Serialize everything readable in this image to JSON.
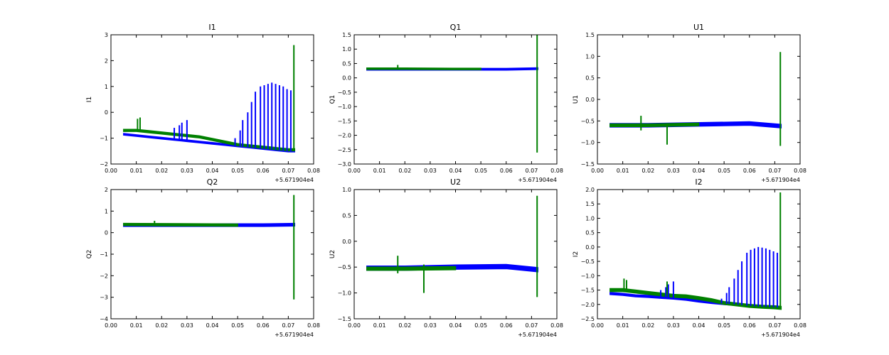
{
  "figure": {
    "x_offset_label": "+5.671904e4",
    "colors": {
      "blue": "#0000ff",
      "green": "#008000"
    }
  },
  "chart_data": [
    {
      "type": "line",
      "title": "I1",
      "ylabel": "I1",
      "xlabel": "",
      "xlim": [
        0.0,
        0.08
      ],
      "ylim": [
        -2,
        3
      ],
      "xticks": [
        "0.00",
        "0.01",
        "0.02",
        "0.03",
        "0.04",
        "0.05",
        "0.06",
        "0.07",
        "0.08"
      ],
      "yticks": [
        "-2",
        "-1",
        "0",
        "1",
        "2",
        "3"
      ],
      "grid": false,
      "series": [
        {
          "color": "#0000ff",
          "x": [
            0.005,
            0.01,
            0.015,
            0.02,
            0.025,
            0.03,
            0.035,
            0.04,
            0.045,
            0.05,
            0.055,
            0.06,
            0.065,
            0.07,
            0.0725
          ],
          "y": [
            -0.85,
            -0.9,
            -0.95,
            -1.0,
            -1.05,
            -1.1,
            -1.15,
            -1.2,
            -1.25,
            -1.3,
            -1.35,
            -1.4,
            -1.45,
            -1.5,
            -1.5
          ],
          "band": 0.06
        },
        {
          "color": "#008000",
          "x": [
            0.005,
            0.01,
            0.015,
            0.02,
            0.025,
            0.03,
            0.035,
            0.04,
            0.045,
            0.05,
            0.055,
            0.06,
            0.065,
            0.07,
            0.0725
          ],
          "y": [
            -0.7,
            -0.7,
            -0.75,
            -0.8,
            -0.85,
            -0.9,
            -0.95,
            -1.05,
            -1.15,
            -1.25,
            -1.3,
            -1.35,
            -1.4,
            -1.45,
            -1.45
          ],
          "band": 0.08
        }
      ],
      "spikes": [
        {
          "color": "#0000ff",
          "x": [
            0.025,
            0.027,
            0.028,
            0.03,
            0.049,
            0.051,
            0.052,
            0.054,
            0.0555,
            0.057,
            0.059,
            0.0605,
            0.062,
            0.0635,
            0.065,
            0.0665,
            0.068,
            0.0695,
            0.071
          ],
          "top": [
            -0.6,
            -0.5,
            -0.4,
            -0.3,
            -1.0,
            -0.7,
            -0.3,
            0.0,
            0.4,
            0.8,
            1.0,
            1.05,
            1.1,
            1.15,
            1.1,
            1.05,
            1.0,
            0.9,
            0.85
          ]
        },
        {
          "color": "#008000",
          "x": [
            0.0105,
            0.0115,
            0.0722
          ],
          "top": [
            -0.25,
            -0.2,
            2.6
          ],
          "bottom": [
            null,
            null,
            -1.5
          ]
        }
      ]
    },
    {
      "type": "line",
      "title": "Q1",
      "ylabel": "Q1",
      "xlabel": "",
      "xlim": [
        0.0,
        0.08
      ],
      "ylim": [
        -3.0,
        1.5
      ],
      "xticks": [
        "0.00",
        "0.01",
        "0.02",
        "0.03",
        "0.04",
        "0.05",
        "0.06",
        "0.07",
        "0.08"
      ],
      "yticks": [
        "-3.0",
        "-2.5",
        "-2.0",
        "-1.5",
        "-1.0",
        "-0.5",
        "0.0",
        "0.5",
        "1.0",
        "1.5"
      ],
      "grid": false,
      "series": [
        {
          "color": "#0000ff",
          "x": [
            0.005,
            0.02,
            0.04,
            0.06,
            0.0725
          ],
          "y": [
            0.3,
            0.3,
            0.3,
            0.3,
            0.32
          ],
          "band": 0.06
        },
        {
          "color": "#008000",
          "x": [
            0.005,
            0.02,
            0.04,
            0.05
          ],
          "y": [
            0.32,
            0.32,
            0.31,
            0.31
          ],
          "band": 0.05
        }
      ],
      "spikes": [
        {
          "color": "#008000",
          "x": [
            0.0172,
            0.0722
          ],
          "top": [
            0.45,
            1.5
          ],
          "bottom": [
            null,
            -2.6
          ]
        }
      ]
    },
    {
      "type": "line",
      "title": "U1",
      "ylabel": "U1",
      "xlabel": "",
      "xlim": [
        0.0,
        0.08
      ],
      "ylim": [
        -1.5,
        1.5
      ],
      "xticks": [
        "0.00",
        "0.01",
        "0.02",
        "0.03",
        "0.04",
        "0.05",
        "0.06",
        "0.07",
        "0.08"
      ],
      "yticks": [
        "-1.5",
        "-1.0",
        "-0.5",
        "0.0",
        "0.5",
        "1.0",
        "1.5"
      ],
      "grid": false,
      "series": [
        {
          "color": "#0000ff",
          "x": [
            0.005,
            0.02,
            0.04,
            0.06,
            0.0725
          ],
          "y": [
            -0.6,
            -0.6,
            -0.58,
            -0.56,
            -0.62
          ],
          "band": 0.08
        },
        {
          "color": "#008000",
          "x": [
            0.005,
            0.02,
            0.04
          ],
          "y": [
            -0.6,
            -0.6,
            -0.58
          ],
          "band": 0.06
        }
      ],
      "spikes": [
        {
          "color": "#008000",
          "x": [
            0.0172,
            0.0275,
            0.0722
          ],
          "top": [
            -0.38,
            -0.55,
            1.1
          ],
          "bottom": [
            -0.72,
            -1.05,
            -1.08
          ]
        }
      ]
    },
    {
      "type": "line",
      "title": "Q2",
      "ylabel": "Q2",
      "xlabel": "",
      "xlim": [
        0.0,
        0.08
      ],
      "ylim": [
        -4,
        2
      ],
      "xticks": [
        "0.00",
        "0.01",
        "0.02",
        "0.03",
        "0.04",
        "0.05",
        "0.06",
        "0.07",
        "0.08"
      ],
      "yticks": [
        "-4",
        "-3",
        "-2",
        "-1",
        "0",
        "1",
        "2"
      ],
      "grid": false,
      "series": [
        {
          "color": "#0000ff",
          "x": [
            0.005,
            0.02,
            0.04,
            0.06,
            0.0725
          ],
          "y": [
            0.35,
            0.35,
            0.35,
            0.35,
            0.37
          ],
          "band": 0.12
        },
        {
          "color": "#008000",
          "x": [
            0.005,
            0.02,
            0.04,
            0.05
          ],
          "y": [
            0.38,
            0.37,
            0.36,
            0.35
          ],
          "band": 0.1
        }
      ],
      "spikes": [
        {
          "color": "#008000",
          "x": [
            0.0172,
            0.0722
          ],
          "top": [
            0.55,
            1.75
          ],
          "bottom": [
            null,
            -3.1
          ]
        }
      ]
    },
    {
      "type": "line",
      "title": "U2",
      "ylabel": "U2",
      "xlabel": "",
      "xlim": [
        0.0,
        0.08
      ],
      "ylim": [
        -1.5,
        1.0
      ],
      "xticks": [
        "0.00",
        "0.01",
        "0.02",
        "0.03",
        "0.04",
        "0.05",
        "0.06",
        "0.07",
        "0.08"
      ],
      "yticks": [
        "-1.5",
        "-1.0",
        "-0.5",
        "0.0",
        "0.5",
        "1.0"
      ],
      "grid": false,
      "series": [
        {
          "color": "#0000ff",
          "x": [
            0.005,
            0.02,
            0.04,
            0.06,
            0.0725
          ],
          "y": [
            -0.52,
            -0.52,
            -0.5,
            -0.49,
            -0.55
          ],
          "band": 0.08
        },
        {
          "color": "#008000",
          "x": [
            0.005,
            0.02,
            0.04
          ],
          "y": [
            -0.53,
            -0.53,
            -0.52
          ],
          "band": 0.06
        }
      ],
      "spikes": [
        {
          "color": "#008000",
          "x": [
            0.0172,
            0.0275,
            0.0722
          ],
          "top": [
            -0.28,
            -0.45,
            0.88
          ],
          "bottom": [
            -0.62,
            -1.0,
            -1.08
          ]
        }
      ]
    },
    {
      "type": "line",
      "title": "I2",
      "ylabel": "I2",
      "xlabel": "",
      "xlim": [
        0.0,
        0.08
      ],
      "ylim": [
        -2.5,
        2.0
      ],
      "xticks": [
        "0.00",
        "0.01",
        "0.02",
        "0.03",
        "0.04",
        "0.05",
        "0.06",
        "0.07",
        "0.08"
      ],
      "yticks": [
        "-2.5",
        "-2.0",
        "-1.5",
        "-1.0",
        "-0.5",
        "0.0",
        "0.5",
        "1.0",
        "1.5",
        "2.0"
      ],
      "grid": false,
      "series": [
        {
          "color": "#0000ff",
          "x": [
            0.005,
            0.01,
            0.015,
            0.02,
            0.025,
            0.03,
            0.035,
            0.04,
            0.045,
            0.05,
            0.055,
            0.06,
            0.065,
            0.07,
            0.0725
          ],
          "y": [
            -1.62,
            -1.65,
            -1.7,
            -1.72,
            -1.75,
            -1.78,
            -1.82,
            -1.88,
            -1.93,
            -1.97,
            -2.0,
            -2.05,
            -2.08,
            -2.1,
            -2.12
          ],
          "band": 0.07
        },
        {
          "color": "#008000",
          "x": [
            0.005,
            0.01,
            0.015,
            0.02,
            0.025,
            0.03,
            0.035,
            0.04,
            0.045,
            0.05,
            0.055,
            0.06,
            0.065,
            0.07,
            0.0725
          ],
          "y": [
            -1.5,
            -1.5,
            -1.55,
            -1.6,
            -1.65,
            -1.7,
            -1.72,
            -1.78,
            -1.85,
            -1.95,
            -2.0,
            -2.05,
            -2.08,
            -2.1,
            -2.12
          ],
          "band": 0.1
        }
      ],
      "spikes": [
        {
          "color": "#0000ff",
          "x": [
            0.025,
            0.027,
            0.028,
            0.03,
            0.049,
            0.051,
            0.052,
            0.054,
            0.0555,
            0.057,
            0.059,
            0.0605,
            0.062,
            0.0635,
            0.065,
            0.0665,
            0.068,
            0.0695,
            0.071
          ],
          "top": [
            -1.5,
            -1.4,
            -1.3,
            -1.2,
            -1.8,
            -1.6,
            -1.4,
            -1.1,
            -0.8,
            -0.5,
            -0.2,
            -0.1,
            -0.05,
            0.0,
            -0.02,
            -0.05,
            -0.1,
            -0.15,
            -0.2
          ]
        },
        {
          "color": "#008000",
          "x": [
            0.0105,
            0.0115,
            0.0275,
            0.0722
          ],
          "top": [
            -1.1,
            -1.15,
            -1.2,
            1.9
          ],
          "bottom": [
            null,
            null,
            null,
            -2.15
          ]
        }
      ]
    }
  ]
}
